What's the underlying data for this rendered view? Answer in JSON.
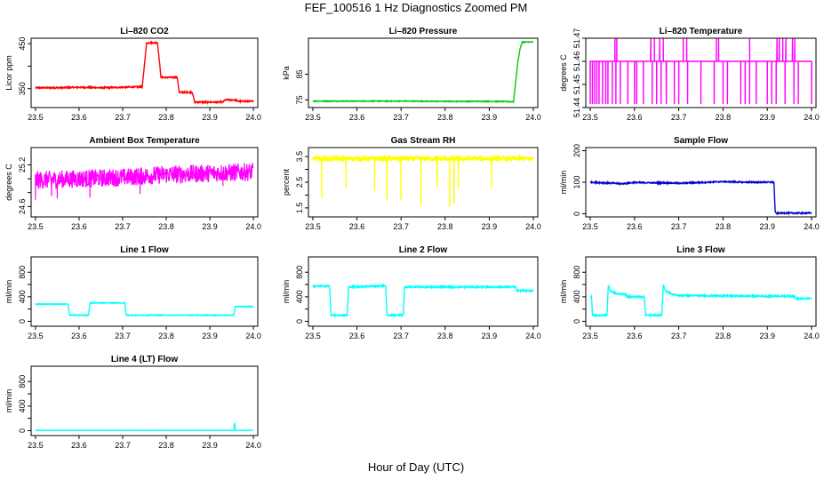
{
  "figure": {
    "title": "FEF_100516  1 Hz Diagnostics Zoomed PM",
    "xlabel": "Hour of Day (UTC)"
  },
  "chart_data": [
    {
      "type": "line",
      "title": "Li–820 CO2",
      "xlabel": "",
      "ylabel": "Licor ppm",
      "color": "#ff0000",
      "xlim": [
        23.49,
        24.01
      ],
      "ylim": [
        308,
        462
      ],
      "xticks": [
        23.5,
        23.6,
        23.7,
        23.8,
        23.9,
        24.0
      ],
      "xtick_labels": [
        "23.5",
        "23.6",
        "23.7",
        "23.8",
        "23.9",
        "24.0"
      ],
      "yticks": [
        350,
        400,
        450
      ],
      "ytick_labels": [
        "350",
        "",
        "450"
      ],
      "noise": 1.5,
      "x": [
        23.5,
        23.55,
        23.6,
        23.65,
        23.7,
        23.745,
        23.755,
        23.77,
        23.78,
        23.788,
        23.81,
        23.825,
        23.83,
        23.845,
        23.86,
        23.865,
        23.88,
        23.9,
        23.93,
        23.935,
        23.96,
        23.965,
        24.0
      ],
      "y": [
        352,
        352,
        353,
        352,
        353,
        354,
        452,
        452,
        452,
        375,
        375,
        375,
        342,
        342,
        342,
        320,
        320,
        320,
        320,
        325,
        325,
        322,
        322
      ]
    },
    {
      "type": "line",
      "title": "Li–820 Pressure",
      "xlabel": "",
      "ylabel": "kPa",
      "color": "#00cc00",
      "xlim": [
        23.49,
        24.01
      ],
      "ylim": [
        72,
        99
      ],
      "xticks": [
        23.5,
        23.6,
        23.7,
        23.8,
        23.9,
        24.0
      ],
      "xtick_labels": [
        "23.5",
        "23.6",
        "23.7",
        "23.8",
        "23.9",
        "24.0"
      ],
      "yticks": [
        75,
        85
      ],
      "ytick_labels": [
        "75",
        "85"
      ],
      "noise": 0.15,
      "x": [
        23.5,
        23.6,
        23.7,
        23.8,
        23.9,
        23.95,
        23.955,
        23.965,
        23.97,
        23.975,
        24.0
      ],
      "y": [
        74.5,
        74.5,
        74.5,
        74.4,
        74.4,
        74.3,
        74.3,
        90,
        95,
        97.5,
        97.5
      ]
    },
    {
      "type": "line",
      "title": "Li–820 Temperature",
      "xlabel": "",
      "ylabel": "degrees C",
      "color": "#ff00ff",
      "xlim": [
        23.49,
        24.01
      ],
      "ylim": [
        51.44,
        51.47
      ],
      "xticks": [
        23.5,
        23.6,
        23.7,
        23.8,
        23.9,
        24.0
      ],
      "xtick_labels": [
        "23.5",
        "23.6",
        "23.7",
        "23.8",
        "23.9",
        "24.0"
      ],
      "yticks": [
        51.44,
        51.45,
        51.46,
        51.47
      ],
      "ytick_labels": [
        "51.44",
        "51.45",
        "51.46",
        "51.47"
      ],
      "noise": 0,
      "x": [
        23.5,
        24.0
      ],
      "y": [
        51.46,
        51.46
      ],
      "spikes_up": [
        23.556,
        23.56,
        23.637,
        23.645,
        23.657,
        23.665,
        23.71,
        23.718,
        23.785,
        23.79,
        23.86,
        23.922,
        23.927,
        23.935,
        23.942,
        23.957,
        23.962
      ],
      "spikes_down": [
        23.5,
        23.505,
        23.51,
        23.515,
        23.52,
        23.528,
        23.535,
        23.54,
        23.55,
        23.558,
        23.568,
        23.585,
        23.6,
        23.605,
        23.62,
        23.64,
        23.65,
        23.66,
        23.672,
        23.69,
        23.7,
        23.72,
        23.75,
        23.78,
        23.8,
        23.81,
        23.84,
        23.85,
        23.86,
        23.875,
        23.9,
        23.91,
        23.92,
        23.94,
        23.96,
        23.97,
        24.0
      ]
    },
    {
      "type": "line",
      "title": "Ambient Box Temperature",
      "xlabel": "",
      "ylabel": "degrees C",
      "color": "#ff00ff",
      "xlim": [
        23.49,
        24.01
      ],
      "ylim": [
        24.45,
        25.45
      ],
      "xticks": [
        23.5,
        23.6,
        23.7,
        23.8,
        23.9,
        24.0
      ],
      "xtick_labels": [
        "23.5",
        "23.6",
        "23.7",
        "23.8",
        "23.9",
        "24.0"
      ],
      "yticks": [
        24.6,
        24.8,
        25.0,
        25.2
      ],
      "ytick_labels": [
        "24.6",
        "",
        "",
        "25.2"
      ],
      "noise": 0.13,
      "x": [
        23.5,
        23.6,
        23.7,
        23.8,
        23.9,
        24.0
      ],
      "y": [
        24.98,
        25.0,
        25.02,
        25.06,
        25.08,
        25.1
      ],
      "spikes_down": [
        23.5,
        23.537,
        23.55,
        23.625,
        23.74,
        23.93
      ],
      "spike_depth": 0.32
    },
    {
      "type": "line",
      "title": "Gas Stream RH",
      "xlabel": "",
      "ylabel": "percent",
      "color": "#ffff00",
      "xlim": [
        23.49,
        24.01
      ],
      "ylim": [
        1.15,
        3.85
      ],
      "xticks": [
        23.5,
        23.6,
        23.7,
        23.8,
        23.9,
        24.0
      ],
      "xtick_labels": [
        "23.5",
        "23.6",
        "23.7",
        "23.8",
        "23.9",
        "24.0"
      ],
      "yticks": [
        1.5,
        2.0,
        2.5,
        3.0,
        3.5
      ],
      "ytick_labels": [
        "1.5",
        "",
        "2.5",
        "",
        "3.5"
      ],
      "noise": 0.1,
      "x": [
        23.5,
        24.0
      ],
      "y": [
        3.42,
        3.42
      ],
      "spikes_down": [
        23.52,
        23.575,
        23.64,
        23.668,
        23.7,
        23.745,
        23.782,
        23.81,
        23.82,
        23.83,
        23.905
      ],
      "spike_depth": 1.9
    },
    {
      "type": "line",
      "title": "Sample Flow",
      "xlabel": "",
      "ylabel": "ml/min",
      "color": "#0000cc",
      "xlim": [
        23.49,
        24.01
      ],
      "ylim": [
        -10,
        210
      ],
      "xticks": [
        23.5,
        23.6,
        23.7,
        23.8,
        23.9,
        24.0
      ],
      "xtick_labels": [
        "23.5",
        "23.6",
        "23.7",
        "23.8",
        "23.9",
        "24.0"
      ],
      "yticks": [
        0,
        100,
        200
      ],
      "ytick_labels": [
        "0",
        "100",
        "200"
      ],
      "noise": 2,
      "x": [
        23.5,
        23.55,
        23.57,
        23.6,
        23.65,
        23.7,
        23.75,
        23.8,
        23.85,
        23.9,
        23.915,
        23.918,
        24.0
      ],
      "y": [
        100,
        97,
        95,
        99,
        98,
        97,
        99,
        102,
        100,
        100,
        100,
        2,
        2
      ]
    },
    {
      "type": "line",
      "title": "Line 1 Flow",
      "xlabel": "",
      "ylabel": "ml/min",
      "color": "#00ffff",
      "xlim": [
        23.49,
        24.01
      ],
      "ylim": [
        -80,
        1050
      ],
      "xticks": [
        23.5,
        23.6,
        23.7,
        23.8,
        23.9,
        24.0
      ],
      "xtick_labels": [
        "23.5",
        "23.6",
        "23.7",
        "23.8",
        "23.9",
        "24.0"
      ],
      "yticks": [
        0,
        200,
        400,
        600,
        800
      ],
      "ytick_labels": [
        "0",
        "",
        "400",
        "",
        "800"
      ],
      "noise": 6,
      "x": [
        23.5,
        23.575,
        23.578,
        23.622,
        23.625,
        23.705,
        23.708,
        23.955,
        23.958,
        24.0
      ],
      "y": [
        280,
        280,
        100,
        100,
        300,
        300,
        100,
        100,
        240,
        240
      ]
    },
    {
      "type": "line",
      "title": "Line 2 Flow",
      "xlabel": "",
      "ylabel": "ml/min",
      "color": "#00ffff",
      "xlim": [
        23.49,
        24.01
      ],
      "ylim": [
        -80,
        1050
      ],
      "xticks": [
        23.5,
        23.6,
        23.7,
        23.8,
        23.9,
        24.0
      ],
      "xtick_labels": [
        "23.5",
        "23.6",
        "23.7",
        "23.8",
        "23.9",
        "24.0"
      ],
      "yticks": [
        0,
        200,
        400,
        600,
        800
      ],
      "ytick_labels": [
        "0",
        "",
        "400",
        "",
        "800"
      ],
      "noise": 12,
      "x": [
        23.5,
        23.538,
        23.541,
        23.578,
        23.581,
        23.665,
        23.668,
        23.705,
        23.708,
        23.8,
        23.9,
        23.96,
        23.963,
        24.0
      ],
      "y": [
        575,
        575,
        100,
        100,
        560,
        580,
        100,
        100,
        560,
        560,
        560,
        560,
        500,
        500
      ]
    },
    {
      "type": "line",
      "title": "Line 3 Flow",
      "xlabel": "",
      "ylabel": "ml/min",
      "color": "#00ffff",
      "xlim": [
        23.49,
        24.01
      ],
      "ylim": [
        -80,
        1050
      ],
      "xticks": [
        23.5,
        23.6,
        23.7,
        23.8,
        23.9,
        24.0
      ],
      "xtick_labels": [
        "23.5",
        "23.6",
        "23.7",
        "23.8",
        "23.9",
        "24.0"
      ],
      "yticks": [
        0,
        200,
        400,
        600,
        800
      ],
      "ytick_labels": [
        "0",
        "",
        "400",
        "",
        "800"
      ],
      "noise": 12,
      "x": [
        23.5,
        23.503,
        23.505,
        23.538,
        23.541,
        23.545,
        23.56,
        23.58,
        23.585,
        23.622,
        23.625,
        23.662,
        23.665,
        23.67,
        23.685,
        23.7,
        23.8,
        23.9,
        23.96,
        23.965,
        24.0
      ],
      "y": [
        400,
        400,
        100,
        100,
        600,
        500,
        450,
        440,
        400,
        400,
        100,
        100,
        590,
        500,
        440,
        420,
        415,
        410,
        410,
        370,
        370
      ]
    },
    {
      "type": "line",
      "title": "Line 4 (LT) Flow",
      "xlabel": "",
      "ylabel": "ml/min",
      "color": "#00ffff",
      "xlim": [
        23.49,
        24.01
      ],
      "ylim": [
        -80,
        1050
      ],
      "xticks": [
        23.5,
        23.6,
        23.7,
        23.8,
        23.9,
        24.0
      ],
      "xtick_labels": [
        "23.5",
        "23.6",
        "23.7",
        "23.8",
        "23.9",
        "24.0"
      ],
      "yticks": [
        0,
        200,
        400,
        600,
        800
      ],
      "ytick_labels": [
        "0",
        "",
        "400",
        "",
        "800"
      ],
      "noise": 2,
      "x": [
        23.5,
        23.955,
        23.957,
        23.958,
        23.96,
        24.0
      ],
      "y": [
        5,
        5,
        150,
        5,
        5,
        5
      ]
    }
  ]
}
